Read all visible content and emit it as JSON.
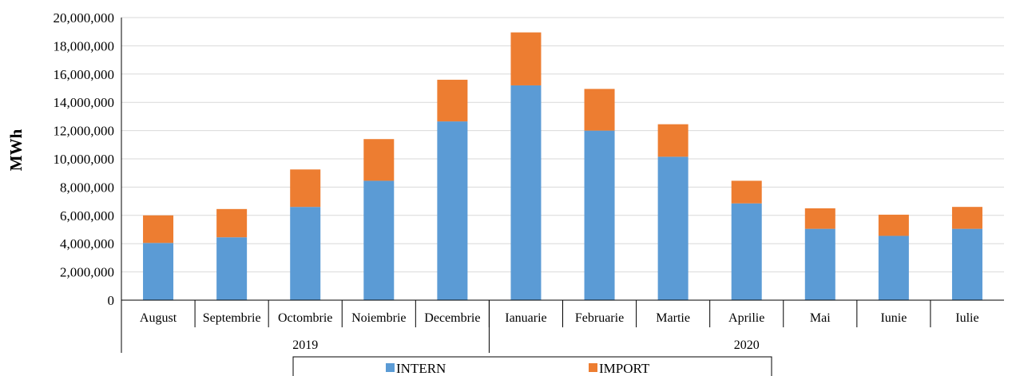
{
  "chart_data": {
    "type": "bar",
    "stacked": true,
    "title": "",
    "xlabel": "",
    "ylabel": "MWh",
    "ylim": [
      0,
      20000000
    ],
    "ytick_step": 2000000,
    "yticks": [
      "0",
      "2,000,000",
      "4,000,000",
      "6,000,000",
      "8,000,000",
      "10,000,000",
      "12,000,000",
      "14,000,000",
      "16,000,000",
      "18,000,000",
      "20,000,000"
    ],
    "grid": true,
    "legend_position": "bottom",
    "categories": [
      "August",
      "Septembrie",
      "Octombrie",
      "Noiembrie",
      "Decembrie",
      "Ianuarie",
      "Februarie",
      "Martie",
      "Aprilie",
      "Mai",
      "Iunie",
      "Iulie"
    ],
    "groups": [
      {
        "label": "2019",
        "count": 5
      },
      {
        "label": "2020",
        "count": 7
      }
    ],
    "series": [
      {
        "name": "INTERN",
        "color": "#5b9bd5",
        "values": [
          4050000,
          4450000,
          6600000,
          8450000,
          12650000,
          15200000,
          12000000,
          10150000,
          6850000,
          5050000,
          4550000,
          5050000
        ]
      },
      {
        "name": "IMPORT",
        "color": "#ed7d31",
        "values": [
          1950000,
          2000000,
          2650000,
          2950000,
          2950000,
          3750000,
          2950000,
          2300000,
          1600000,
          1450000,
          1500000,
          1550000
        ]
      }
    ]
  }
}
